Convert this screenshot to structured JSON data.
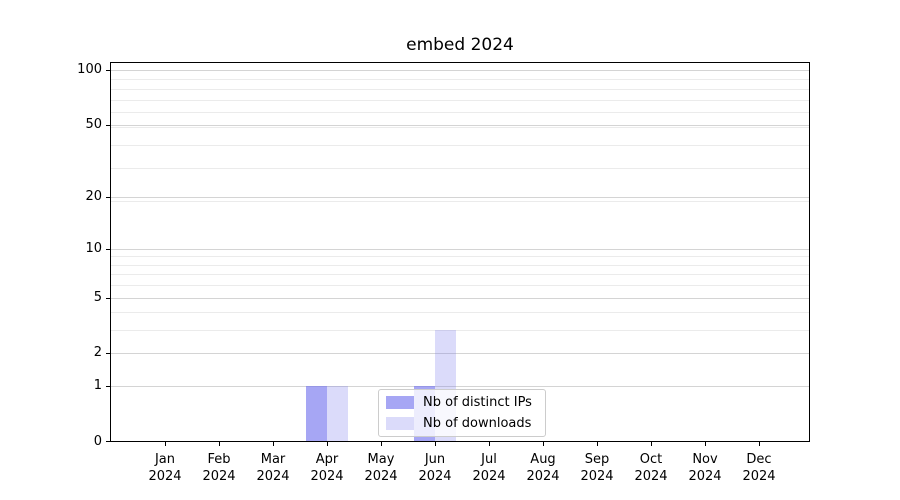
{
  "figure": {
    "title": "embed 2024"
  },
  "chart_data": {
    "type": "bar",
    "title": "embed 2024",
    "categories": [
      "Jan",
      "Feb",
      "Mar",
      "Apr",
      "May",
      "Jun",
      "Jul",
      "Aug",
      "Sep",
      "Oct",
      "Nov",
      "Dec"
    ],
    "category_year": "2024",
    "series": [
      {
        "name": "Nb of distinct IPs",
        "color": "rgba(112,112,237,0.62)",
        "values": [
          0,
          0,
          0,
          1,
          0,
          1,
          0,
          0,
          0,
          0,
          0,
          0
        ]
      },
      {
        "name": "Nb of downloads",
        "color": "rgba(112,112,237,0.25)",
        "values": [
          0,
          0,
          0,
          1,
          0,
          3,
          0,
          0,
          0,
          0,
          0,
          0
        ]
      }
    ],
    "y_axis": {
      "scale": "log10(value+1)",
      "ticks": [
        0,
        1,
        2,
        5,
        10,
        20,
        50,
        100
      ],
      "minor_gridlines": [
        3,
        4,
        6,
        7,
        8,
        9,
        19,
        29,
        39,
        49,
        59,
        69,
        79,
        89
      ],
      "range_bottom": 0,
      "range_top": 110.5
    },
    "x_axis": {
      "range": "Jan 2024 - Dec 2024"
    },
    "grid": {
      "orientation": "horizontal",
      "major_color": "#d4d4d4",
      "minor_color": "#ebebeb"
    },
    "legend": {
      "position": "lower center"
    }
  }
}
